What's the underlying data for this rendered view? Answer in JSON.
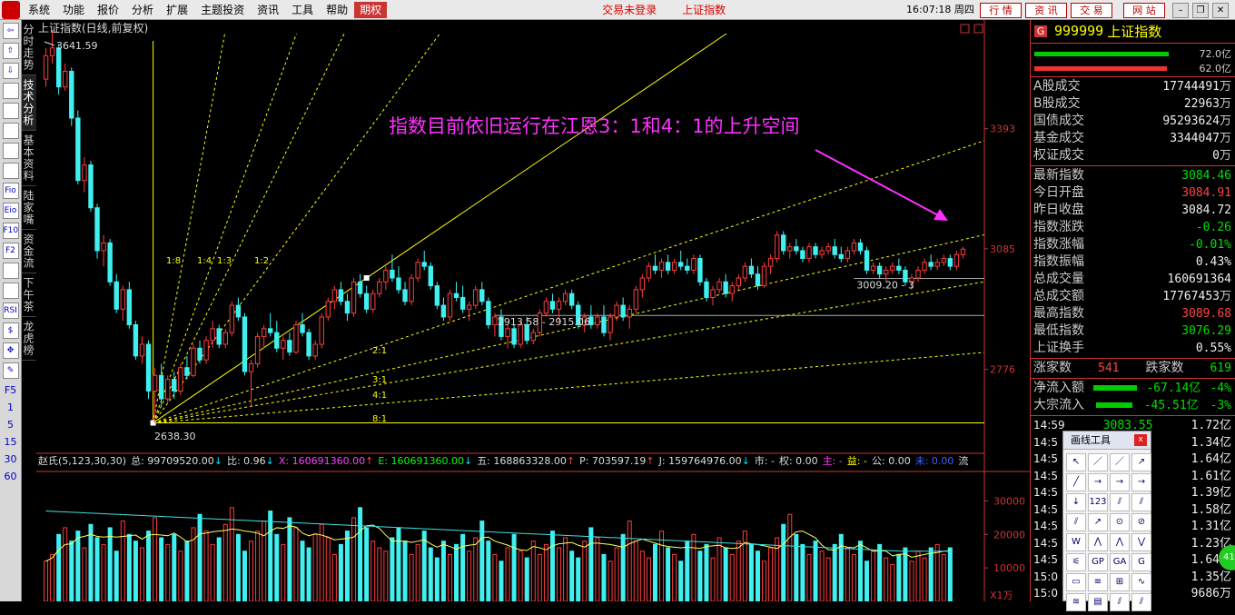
{
  "menu": {
    "items": [
      "系统",
      "功能",
      "报价",
      "分析",
      "扩展",
      "主题投资",
      "资讯",
      "工具",
      "帮助"
    ],
    "quanquan": "期权",
    "status1": "交易未登录",
    "status2": "上证指数",
    "clock": "16:07:18 周四",
    "right_tabs": [
      "行 情",
      "资 讯",
      "交 易",
      "网 站"
    ]
  },
  "left_tools": [
    "⇦",
    "⇧",
    "⇩",
    "",
    "",
    "",
    "",
    "",
    "Fio",
    "Eio",
    "F10",
    "F2",
    "",
    "",
    "RSI",
    "$",
    "✥",
    "✎"
  ],
  "left_numbers": [
    "F5",
    "1",
    "5",
    "15",
    "30",
    "60"
  ],
  "vtabs": [
    "分时走势",
    "技术分析",
    "基本资料",
    "陆家嘴",
    "资金流",
    "下午茶",
    "龙虎榜"
  ],
  "chart": {
    "title": "上证指数(日线,前复权)",
    "annotation": "指数目前依旧运行在江恩3：1和4：1的上升空间",
    "high_label": "3641.59",
    "low_label": "2638.30",
    "level1": "2913.58 - 2915.06",
    "level2": "3009.20 - 3",
    "price_axis": [
      "3393",
      "3085",
      "2776"
    ],
    "gann_upper": [
      "1:8",
      "1:4",
      "1:3",
      "1:2"
    ],
    "gann_lower": [
      "2:1",
      "3:1",
      "4:1",
      "8:1"
    ],
    "indicator_name": "赵氏(5,123,30,30)",
    "ind_items": [
      {
        "t": "总: 99709520.00",
        "c": "#ddd"
      },
      {
        "t": "↓",
        "c": "#00e0ff"
      },
      {
        "t": "比: 0.96",
        "c": "#ddd"
      },
      {
        "t": "↓",
        "c": "#00e0ff"
      },
      {
        "t": "X: 160691360.00",
        "c": "#ff40ff"
      },
      {
        "t": "↑",
        "c": "#ff4444"
      },
      {
        "t": "E: 160691360.00",
        "c": "#00ff00"
      },
      {
        "t": "↓",
        "c": "#00e0ff"
      },
      {
        "t": "五: 168863328.00",
        "c": "#ddd"
      },
      {
        "t": "↑",
        "c": "#ff4444"
      },
      {
        "t": "P: 703597.19",
        "c": "#ddd"
      },
      {
        "t": "↑",
        "c": "#ff4444"
      },
      {
        "t": "J: 159764976.00",
        "c": "#ddd"
      },
      {
        "t": "↓",
        "c": "#00e0ff"
      },
      {
        "t": "市: -",
        "c": "#ddd"
      },
      {
        "t": "权: 0.00",
        "c": "#ddd"
      },
      {
        "t": "主: -",
        "c": "#ff40ff"
      },
      {
        "t": "益: -",
        "c": "#ffff00"
      },
      {
        "t": "公: 0.00",
        "c": "#ddd"
      },
      {
        "t": "未: 0.00",
        "c": "#4060ff"
      },
      {
        "t": "流",
        "c": "#ddd"
      }
    ],
    "vol_axis": [
      "30000",
      "20000",
      "10000"
    ],
    "vol_unit": "X1万"
  },
  "candles": [
    [
      3520,
      3600,
      3500,
      3580
    ],
    [
      3580,
      3641,
      3560,
      3600
    ],
    [
      3600,
      3610,
      3480,
      3500
    ],
    [
      3500,
      3560,
      3490,
      3540
    ],
    [
      3540,
      3550,
      3400,
      3420
    ],
    [
      3420,
      3440,
      3250,
      3260
    ],
    [
      3260,
      3320,
      3230,
      3300
    ],
    [
      3300,
      3310,
      3180,
      3190
    ],
    [
      3190,
      3200,
      3060,
      3080
    ],
    [
      3080,
      3120,
      3040,
      3100
    ],
    [
      3100,
      3110,
      2990,
      3000
    ],
    [
      3000,
      3020,
      2920,
      2930
    ],
    [
      2930,
      2990,
      2900,
      2980
    ],
    [
      2980,
      3000,
      2880,
      2890
    ],
    [
      2890,
      2900,
      2800,
      2810
    ],
    [
      2810,
      2860,
      2790,
      2840
    ],
    [
      2840,
      2850,
      2700,
      2720
    ],
    [
      2720,
      2780,
      2638,
      2760
    ],
    [
      2760,
      2790,
      2680,
      2700
    ],
    [
      2700,
      2760,
      2690,
      2750
    ],
    [
      2750,
      2770,
      2700,
      2720
    ],
    [
      2720,
      2790,
      2710,
      2780
    ],
    [
      2780,
      2810,
      2750,
      2760
    ],
    [
      2760,
      2840,
      2755,
      2830
    ],
    [
      2830,
      2850,
      2790,
      2800
    ],
    [
      2800,
      2860,
      2790,
      2850
    ],
    [
      2850,
      2900,
      2830,
      2880
    ],
    [
      2880,
      2890,
      2830,
      2840
    ],
    [
      2840,
      2880,
      2830,
      2870
    ],
    [
      2870,
      2950,
      2860,
      2940
    ],
    [
      2940,
      2960,
      2900,
      2910
    ],
    [
      2910,
      2920,
      2760,
      2770
    ],
    [
      2770,
      2800,
      2680,
      2790
    ],
    [
      2790,
      2870,
      2780,
      2860
    ],
    [
      2860,
      2890,
      2830,
      2880
    ],
    [
      2880,
      2920,
      2860,
      2870
    ],
    [
      2870,
      2900,
      2820,
      2830
    ],
    [
      2830,
      2860,
      2800,
      2850
    ],
    [
      2850,
      2870,
      2810,
      2820
    ],
    [
      2820,
      2900,
      2815,
      2890
    ],
    [
      2890,
      2920,
      2860,
      2870
    ],
    [
      2870,
      2880,
      2800,
      2810
    ],
    [
      2810,
      2850,
      2800,
      2840
    ],
    [
      2840,
      2920,
      2830,
      2910
    ],
    [
      2910,
      2960,
      2900,
      2950
    ],
    [
      2950,
      2990,
      2930,
      2980
    ],
    [
      2980,
      3000,
      2940,
      2950
    ],
    [
      2950,
      2970,
      2900,
      2920
    ],
    [
      2920,
      3010,
      2910,
      3000
    ],
    [
      3000,
      3020,
      2960,
      2970
    ],
    [
      2970,
      2990,
      2920,
      2930
    ],
    [
      2930,
      2980,
      2920,
      2970
    ],
    [
      2970,
      3010,
      2960,
      3000
    ],
    [
      3000,
      3040,
      2980,
      3030
    ],
    [
      3030,
      3070,
      3000,
      3010
    ],
    [
      3010,
      3040,
      2970,
      2980
    ],
    [
      2980,
      3000,
      2940,
      2950
    ],
    [
      2950,
      3020,
      2940,
      3010
    ],
    [
      3010,
      3060,
      3000,
      3050
    ],
    [
      3050,
      3080,
      3030,
      3040
    ],
    [
      3040,
      3050,
      2980,
      2990
    ],
    [
      2990,
      3000,
      2930,
      2940
    ],
    [
      2940,
      2960,
      2900,
      2910
    ],
    [
      2910,
      2980,
      2900,
      2970
    ],
    [
      2970,
      3000,
      2950,
      2960
    ],
    [
      2960,
      2990,
      2920,
      2930
    ],
    [
      2930,
      2950,
      2900,
      2940
    ],
    [
      2940,
      2990,
      2930,
      2980
    ],
    [
      2980,
      3000,
      2940,
      2950
    ],
    [
      2950,
      2960,
      2880,
      2890
    ],
    [
      2890,
      2920,
      2860,
      2910
    ],
    [
      2910,
      2930,
      2850,
      2860
    ],
    [
      2860,
      2890,
      2830,
      2880
    ],
    [
      2880,
      2890,
      2830,
      2840
    ],
    [
      2840,
      2900,
      2830,
      2890
    ],
    [
      2890,
      2910,
      2840,
      2850
    ],
    [
      2850,
      2880,
      2840,
      2870
    ],
    [
      2870,
      2930,
      2860,
      2920
    ],
    [
      2920,
      2960,
      2910,
      2950
    ],
    [
      2950,
      2970,
      2920,
      2930
    ],
    [
      2930,
      2960,
      2900,
      2950
    ],
    [
      2950,
      2980,
      2940,
      2970
    ],
    [
      2970,
      2980,
      2930,
      2940
    ],
    [
      2940,
      2950,
      2880,
      2890
    ],
    [
      2890,
      2920,
      2870,
      2910
    ],
    [
      2910,
      2940,
      2880,
      2890
    ],
    [
      2890,
      2920,
      2880,
      2910
    ],
    [
      2910,
      2940,
      2860,
      2870
    ],
    [
      2870,
      2920,
      2850,
      2910
    ],
    [
      2910,
      2950,
      2900,
      2940
    ],
    [
      2940,
      2960,
      2900,
      2910
    ],
    [
      2910,
      2940,
      2880,
      2930
    ],
    [
      2930,
      2990,
      2920,
      2980
    ],
    [
      2980,
      3020,
      2960,
      3010
    ],
    [
      3010,
      3050,
      3000,
      3040
    ],
    [
      3040,
      3070,
      3020,
      3030
    ],
    [
      3030,
      3060,
      3010,
      3050
    ],
    [
      3050,
      3070,
      3020,
      3030
    ],
    [
      3030,
      3060,
      3020,
      3050
    ],
    [
      3050,
      3080,
      3030,
      3040
    ],
    [
      3040,
      3060,
      3020,
      3030
    ],
    [
      3030,
      3070,
      3020,
      3060
    ],
    [
      3060,
      3070,
      2990,
      3000
    ],
    [
      3000,
      3010,
      2950,
      2960
    ],
    [
      2960,
      2990,
      2940,
      2980
    ],
    [
      2980,
      3010,
      2970,
      3000
    ],
    [
      3000,
      3020,
      2960,
      2970
    ],
    [
      2970,
      3000,
      2950,
      2990
    ],
    [
      2990,
      3020,
      2980,
      3010
    ],
    [
      3010,
      3050,
      3000,
      3040
    ],
    [
      3040,
      3060,
      3010,
      3020
    ],
    [
      3020,
      3040,
      2980,
      2990
    ],
    [
      2990,
      3050,
      2985,
      3040
    ],
    [
      3040,
      3070,
      3020,
      3060
    ],
    [
      3060,
      3130,
      3050,
      3120
    ],
    [
      3120,
      3130,
      3070,
      3080
    ],
    [
      3080,
      3100,
      3060,
      3090
    ],
    [
      3090,
      3110,
      3070,
      3080
    ],
    [
      3080,
      3090,
      3050,
      3060
    ],
    [
      3060,
      3100,
      3050,
      3090
    ],
    [
      3090,
      3100,
      3060,
      3070
    ],
    [
      3070,
      3090,
      3060,
      3080
    ],
    [
      3080,
      3100,
      3070,
      3090
    ],
    [
      3090,
      3110,
      3060,
      3070
    ],
    [
      3070,
      3090,
      3050,
      3060
    ],
    [
      3060,
      3090,
      3050,
      3080
    ],
    [
      3080,
      3110,
      3070,
      3100
    ],
    [
      3100,
      3110,
      3070,
      3080
    ],
    [
      3080,
      3090,
      3020,
      3030
    ],
    [
      3030,
      3050,
      3020,
      3040
    ],
    [
      3040,
      3050,
      3010,
      3020
    ],
    [
      3020,
      3040,
      3000,
      3030
    ],
    [
      3030,
      3050,
      3020,
      3040
    ],
    [
      3040,
      3060,
      3020,
      3030
    ],
    [
      3030,
      3040,
      2990,
      3000
    ],
    [
      3000,
      3020,
      2980,
      3010
    ],
    [
      3010,
      3040,
      3000,
      3030
    ],
    [
      3030,
      3060,
      3020,
      3050
    ],
    [
      3050,
      3070,
      3030,
      3040
    ],
    [
      3040,
      3060,
      3030,
      3050
    ],
    [
      3050,
      3070,
      3040,
      3060
    ],
    [
      3060,
      3070,
      3030,
      3040
    ],
    [
      3040,
      3080,
      3030,
      3070
    ],
    [
      3070,
      3090,
      3060,
      3084
    ]
  ],
  "vol_base": [
    12000,
    14000,
    20000,
    22000,
    18000,
    21000,
    16000,
    23000,
    19000,
    17000,
    22000,
    15000,
    24000,
    20000,
    18000,
    16000,
    21000,
    25000,
    19000,
    17000,
    20000,
    15000,
    18000,
    22000,
    26000,
    21000,
    17000,
    19000,
    23000,
    28000,
    20000,
    15000,
    18000,
    21000,
    24000,
    27000,
    20000,
    17000,
    25000,
    22000,
    18000,
    16000,
    20000,
    23000,
    19000,
    14000,
    17000,
    21000,
    25000,
    28000,
    22000,
    18000,
    16000,
    15000,
    19000,
    22000,
    18000,
    14000,
    17000,
    21000,
    16000,
    13000,
    18000,
    14000,
    17000,
    20000,
    15000,
    19000,
    24000,
    18000,
    14000,
    12000,
    16000,
    20000,
    15000,
    13000,
    18000,
    14000,
    17000,
    21000,
    16000,
    19000,
    15000,
    13000,
    18000,
    22000,
    19000,
    14000,
    12000,
    16000,
    20000,
    24000,
    18000,
    15000,
    13000,
    17000,
    21000,
    16000,
    14000,
    12000,
    18000,
    20000,
    15000,
    17000,
    13000,
    19000,
    16000,
    14000,
    18000,
    21000,
    17000,
    15000,
    12000,
    16000,
    19000,
    23000,
    26000,
    20000,
    17000,
    14000,
    18000,
    15000,
    13000,
    17000,
    20000,
    16000,
    14000,
    18000,
    12000,
    15000,
    17000,
    13000,
    11000,
    14000,
    16000,
    12000,
    15000,
    13000,
    16000,
    17000,
    14000,
    16000
  ],
  "right_panel": {
    "code": "999999",
    "name": "上证指数",
    "bar_values": [
      "72.0亿",
      "62.0亿"
    ],
    "rows": [
      {
        "l": "A股成交",
        "v": "17744491",
        "u": "万",
        "c": "wh"
      },
      {
        "l": "B股成交",
        "v": "22963",
        "u": "万",
        "c": "wh"
      },
      {
        "l": "国债成交",
        "v": "95293624",
        "u": "万",
        "c": "wh"
      },
      {
        "l": "基金成交",
        "v": "3344047",
        "u": "万",
        "c": "wh"
      },
      {
        "l": "权证成交",
        "v": "0",
        "u": "万",
        "c": "wh"
      }
    ],
    "rows2": [
      {
        "l": "最新指数",
        "v": "3084.46",
        "c": "dn"
      },
      {
        "l": "今日开盘",
        "v": "3084.91",
        "c": "up"
      },
      {
        "l": "昨日收盘",
        "v": "3084.72",
        "c": "wh"
      },
      {
        "l": "指数涨跌",
        "v": "-0.26",
        "c": "dn"
      },
      {
        "l": "指数涨幅",
        "v": "-0.01%",
        "c": "dn"
      },
      {
        "l": "指数振幅",
        "v": "0.43%",
        "c": "wh"
      },
      {
        "l": "总成交量",
        "v": "160691364",
        "c": "wh"
      },
      {
        "l": "总成交额",
        "v": "17767453",
        "u": "万",
        "c": "wh"
      },
      {
        "l": "最高指数",
        "v": "3089.68",
        "c": "up"
      },
      {
        "l": "最低指数",
        "v": "3076.29",
        "c": "dn"
      },
      {
        "l": "上证换手",
        "v": "0.55%",
        "c": "wh"
      }
    ],
    "up_label": "涨家数",
    "up_count": "541",
    "dn_label": "跌家数",
    "dn_count": "619",
    "flow": [
      {
        "l": "净流入额",
        "v": "-67.14亿",
        "p": "-4%"
      },
      {
        "l": "大宗流入",
        "v": "-45.51亿",
        "p": "-3%"
      }
    ],
    "ticks": [
      {
        "t": "14:59",
        "p": "3083.55",
        "a": "1.72亿"
      },
      {
        "t": "14:5",
        "p": "",
        "a": "1.34亿"
      },
      {
        "t": "14:5",
        "p": "",
        "a": "1.64亿"
      },
      {
        "t": "14:5",
        "p": "",
        "a": "1.61亿"
      },
      {
        "t": "14:5",
        "p": "",
        "a": "1.39亿"
      },
      {
        "t": "14:5",
        "p": "",
        "a": "1.58亿"
      },
      {
        "t": "14:5",
        "p": "",
        "a": "1.31亿"
      },
      {
        "t": "14:5",
        "p": "",
        "a": "1.23亿"
      },
      {
        "t": "14:5",
        "p": "",
        "a": "1.64亿"
      },
      {
        "t": "15:0",
        "p": "",
        "a": "1.35亿"
      },
      {
        "t": "15:0",
        "p": "",
        "a": "9686万"
      }
    ]
  },
  "draw_tool": {
    "title": "画线工具",
    "close": "x",
    "buttons": [
      "↖",
      "／",
      "／",
      "↗",
      "╱",
      "→",
      "→",
      "→",
      "↓",
      "123",
      "⫽",
      "⫽",
      "⫽",
      "↗",
      "⊙",
      "⊘",
      "W",
      "⋀",
      "⋀",
      "⋁",
      "⚟",
      "GP",
      "GA",
      "G",
      "▭",
      "≡",
      "⊞",
      "∿",
      "≋",
      "▤",
      "⫽",
      "⫽"
    ]
  },
  "circle_badge": "41"
}
